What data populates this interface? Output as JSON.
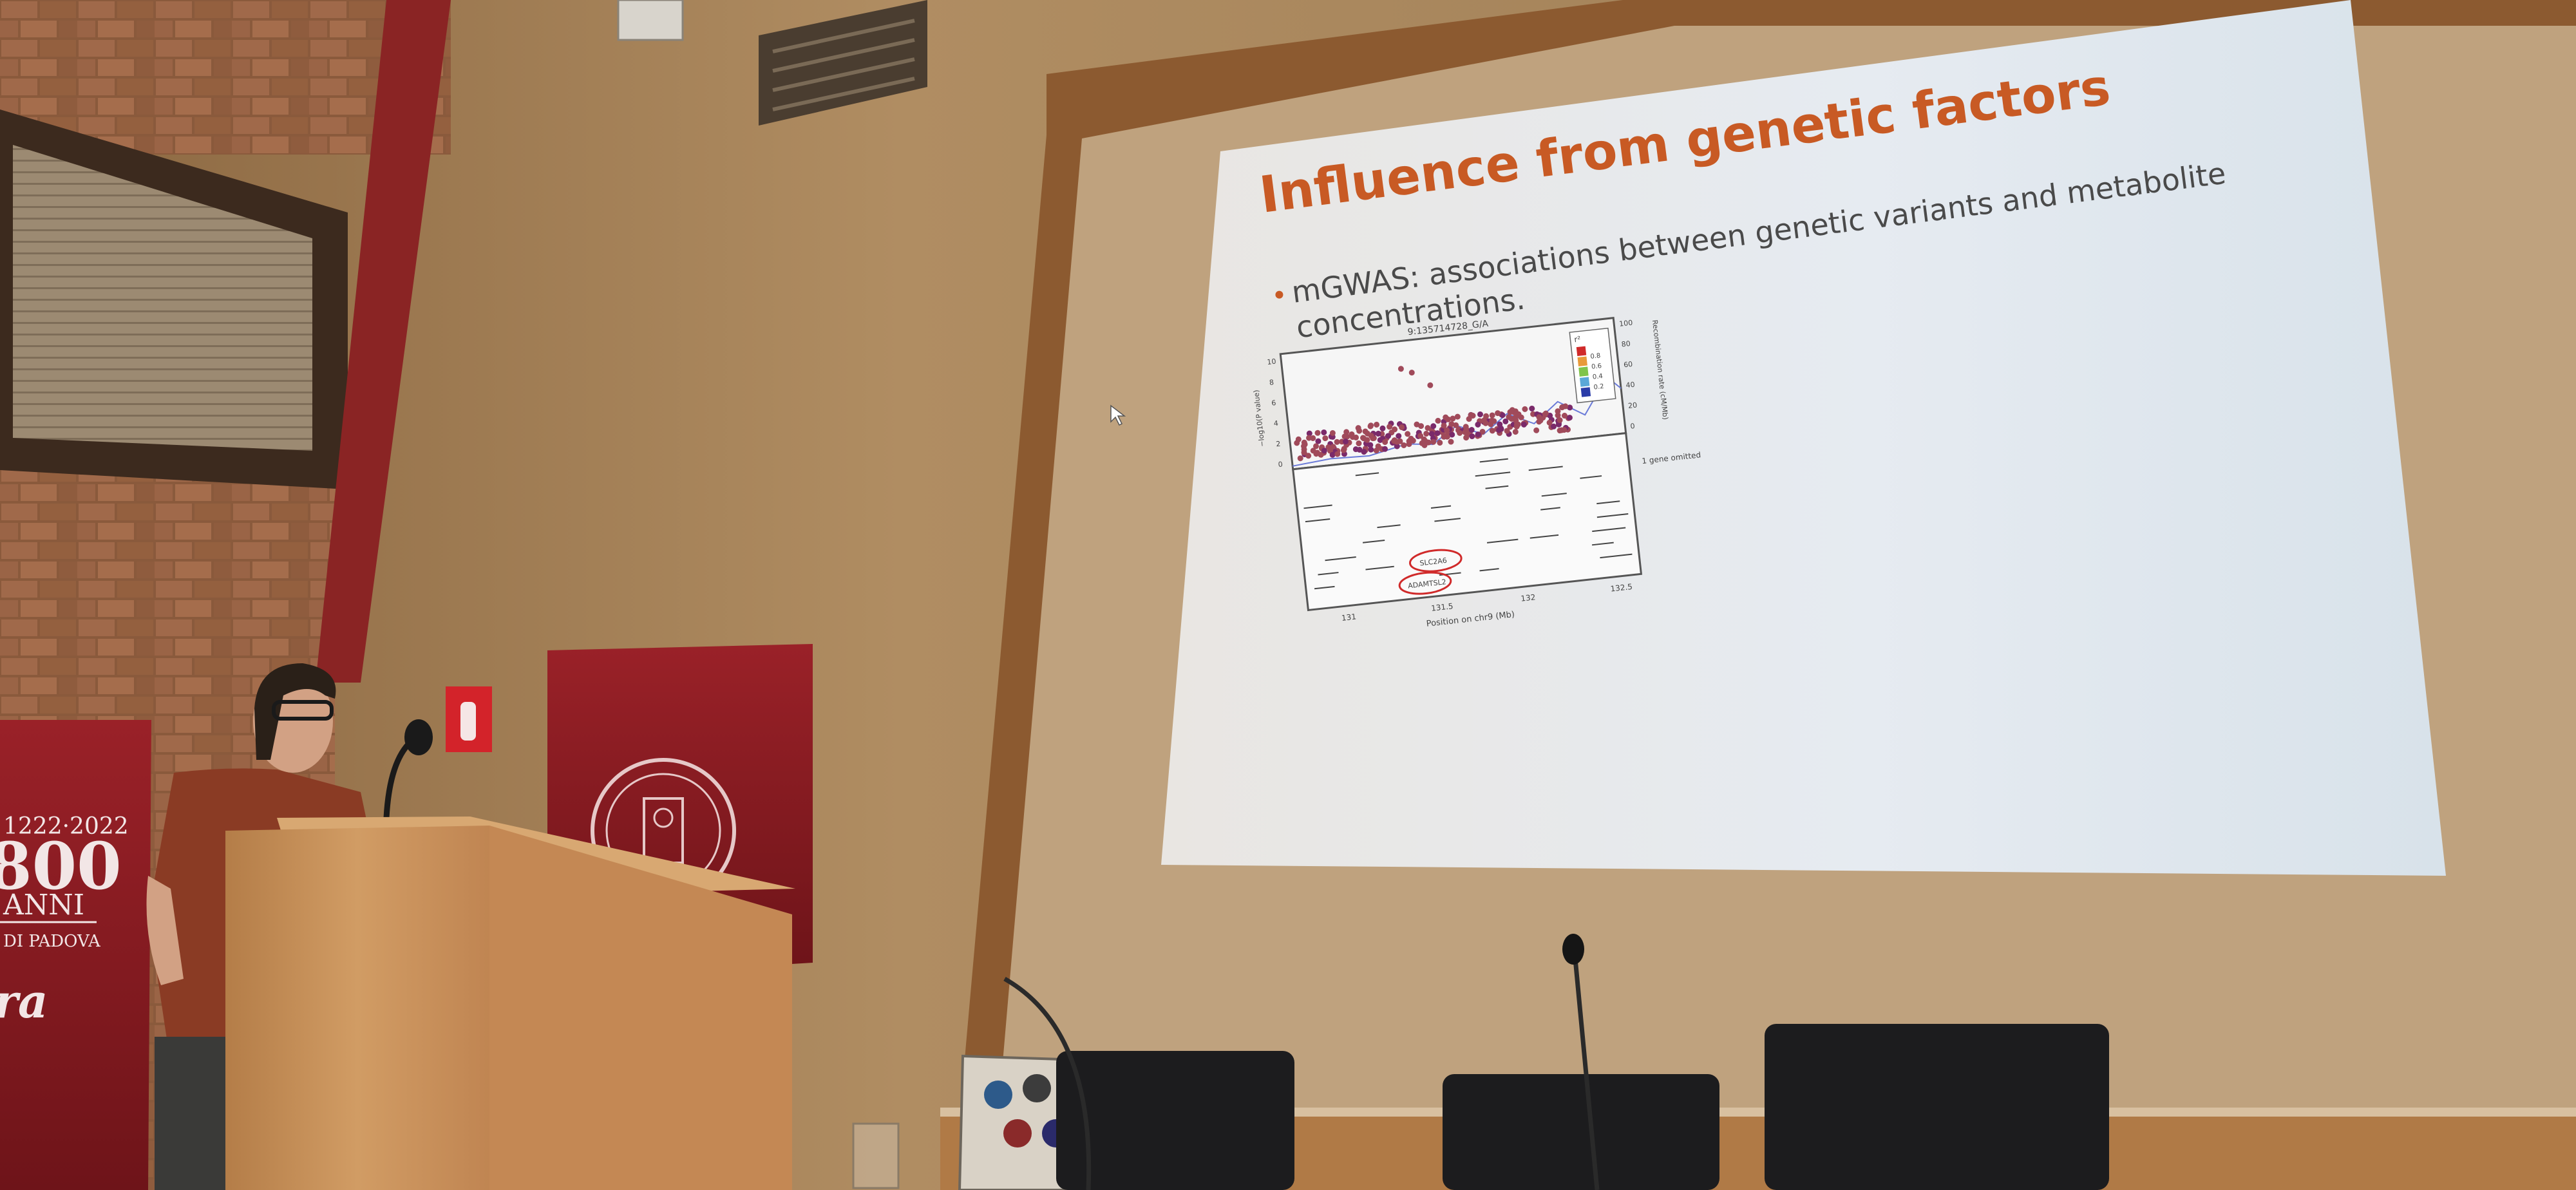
{
  "slide": {
    "title": "Influence from genetic factors",
    "bullet_line1": "mGWAS: associations between genetic variants and metabolite",
    "bullet_line2": "concentrations.",
    "figure": {
      "top_snp_label": "9:135714728_G/A",
      "x_axis_label": "Position on chr9 (Mb)",
      "x_ticks": [
        "131",
        "131.5",
        "132",
        "132.5"
      ],
      "y_ticks": [
        "10",
        "8",
        "6",
        "4",
        "2",
        "0"
      ],
      "y_left_label": "−log10(P value)",
      "y_right_ticks": [
        "100",
        "80",
        "60",
        "40",
        "20",
        "0"
      ],
      "y_right_label": "Recombination rate (cM/Mb)",
      "r2_legend_title": "r²",
      "r2_legend_values": [
        "0.8",
        "0.6",
        "0.4",
        "0.2"
      ],
      "r2_legend_colors": [
        "#d02a2a",
        "#e89a3a",
        "#7fc44a",
        "#5aa8d8",
        "#2a3ca8"
      ],
      "gene_note": "1 gene omitted",
      "circled_genes": [
        "SLC2A6",
        "ADAMTSL2"
      ]
    }
  },
  "banner_left": {
    "years": "1222·2022",
    "big_mark": "800",
    "anni": "ANNI",
    "city": "DI PADOVA",
    "fragment": "ra"
  },
  "colors": {
    "slide_title": "#c85a24",
    "banner_red": "#8e1c22",
    "screen": "#dfe4ea",
    "podium": "#c9935d",
    "wall": "#a88256"
  }
}
